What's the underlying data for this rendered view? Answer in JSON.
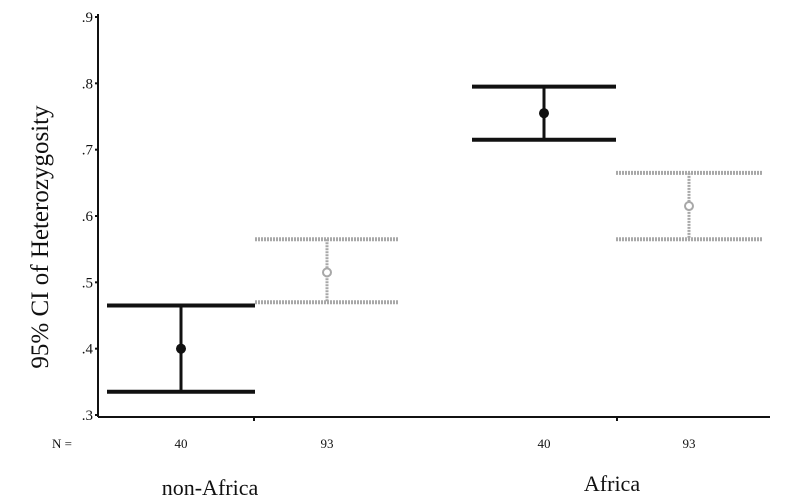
{
  "chart_data": {
    "type": "errorbar",
    "ylabel": "95% CI of Heterozygosity",
    "ylim": [
      0.3,
      0.9
    ],
    "yticks": [
      ".3",
      ".4",
      ".5",
      ".6",
      ".7",
      ".8",
      ".9"
    ],
    "n_label": "N =",
    "groups": [
      {
        "name": "non-Africa",
        "bars": [
          {
            "n": "40",
            "mean": 0.4,
            "lower": 0.335,
            "upper": 0.465,
            "style": "solid",
            "color": "#111111"
          },
          {
            "n": "93",
            "mean": 0.515,
            "lower": 0.47,
            "upper": 0.565,
            "style": "light",
            "color": "#a8a8a8"
          }
        ]
      },
      {
        "name": "Africa",
        "bars": [
          {
            "n": "40",
            "mean": 0.755,
            "lower": 0.715,
            "upper": 0.795,
            "style": "solid",
            "color": "#111111"
          },
          {
            "n": "93",
            "mean": 0.615,
            "lower": 0.565,
            "upper": 0.665,
            "style": "light",
            "color": "#a8a8a8"
          }
        ]
      }
    ]
  }
}
